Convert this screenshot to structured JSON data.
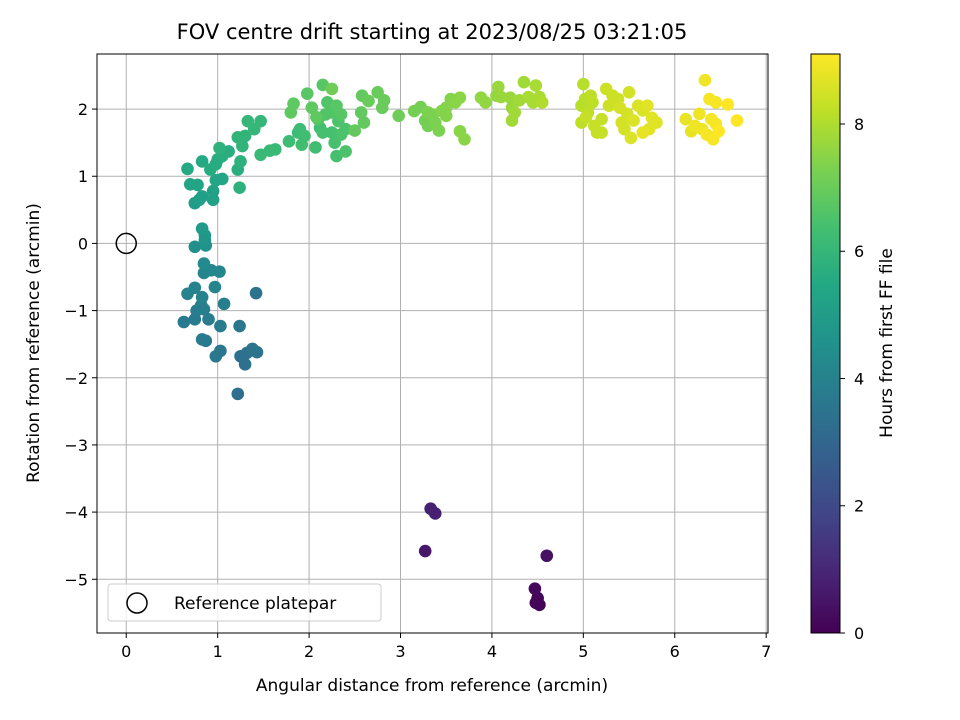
{
  "chart_data": {
    "type": "scatter",
    "title": "FOV centre drift starting at 2023/08/25 03:21:05",
    "xlabel": "Angular distance from reference (arcmin)",
    "ylabel": "Rotation from reference (arcmin)",
    "xlim": [
      -0.32,
      7.02
    ],
    "ylim": [
      -5.8,
      2.82
    ],
    "xticks": [
      0,
      1,
      2,
      3,
      4,
      5,
      6,
      7
    ],
    "yticks": [
      -5,
      -4,
      -3,
      -2,
      -1,
      0,
      1,
      2
    ],
    "xtick_labels": [
      "0",
      "1",
      "2",
      "3",
      "4",
      "5",
      "6",
      "7"
    ],
    "ytick_labels": [
      "−5",
      "−4",
      "−3",
      "−2",
      "−1",
      "0",
      "1",
      "2"
    ],
    "grid": true,
    "legend": {
      "position": "lower-left",
      "label": "Reference platepar"
    },
    "colorbar": {
      "label": "Hours from first FF file",
      "range": [
        0,
        9.1
      ],
      "ticks": [
        0,
        2,
        4,
        6,
        8
      ],
      "tick_labels": [
        "0",
        "2",
        "4",
        "6",
        "8"
      ],
      "colormap": "viridis"
    },
    "reference_point": {
      "x": 0,
      "y": 0
    },
    "series": [
      {
        "points": [
          [
            4.48,
            -5.35,
            0.1
          ],
          [
            4.52,
            -5.38,
            0.1
          ],
          [
            4.5,
            -5.28,
            0.1
          ],
          [
            4.47,
            -5.14,
            0.2
          ],
          [
            4.6,
            -4.65,
            0.4
          ],
          [
            3.33,
            -3.95,
            0.8
          ],
          [
            3.38,
            -4.02,
            0.8
          ],
          [
            3.27,
            -4.58,
            0.6
          ],
          [
            1.22,
            -2.24,
            3.3
          ],
          [
            1.25,
            -1.68,
            3.4
          ],
          [
            1.32,
            -1.63,
            3.4
          ],
          [
            1.3,
            -1.8,
            3.4
          ],
          [
            1.38,
            -1.57,
            3.5
          ],
          [
            1.43,
            -1.62,
            3.5
          ],
          [
            1.42,
            -0.74,
            3.5
          ],
          [
            1.24,
            -1.23,
            3.6
          ],
          [
            0.98,
            -1.68,
            3.6
          ],
          [
            1.03,
            -1.6,
            3.6
          ],
          [
            0.87,
            -1.45,
            3.7
          ],
          [
            0.83,
            -1.43,
            3.7
          ],
          [
            0.63,
            -1.17,
            3.7
          ],
          [
            0.75,
            -1.13,
            3.7
          ],
          [
            0.9,
            -1.13,
            3.8
          ],
          [
            1.03,
            -1.23,
            3.8
          ],
          [
            0.77,
            -1.0,
            3.8
          ],
          [
            0.85,
            -0.98,
            3.9
          ],
          [
            0.82,
            -0.92,
            3.9
          ],
          [
            1.07,
            -0.9,
            3.9
          ],
          [
            0.83,
            -0.8,
            4.0
          ],
          [
            0.67,
            -0.75,
            4.0
          ],
          [
            0.75,
            -0.66,
            4.0
          ],
          [
            0.97,
            -0.65,
            4.1
          ],
          [
            0.85,
            -0.44,
            4.1
          ],
          [
            0.93,
            -0.4,
            4.2
          ],
          [
            1.02,
            -0.42,
            4.2
          ],
          [
            0.85,
            -0.3,
            4.3
          ],
          [
            0.75,
            -0.05,
            4.5
          ],
          [
            0.87,
            -0.03,
            4.6
          ],
          [
            0.86,
            0.05,
            4.7
          ],
          [
            0.86,
            0.12,
            4.8
          ],
          [
            0.83,
            0.22,
            4.9
          ],
          [
            0.75,
            0.6,
            5.0
          ],
          [
            0.8,
            0.65,
            5.1
          ],
          [
            0.83,
            0.7,
            5.1
          ],
          [
            0.95,
            0.65,
            5.2
          ],
          [
            0.95,
            0.78,
            5.2
          ],
          [
            0.7,
            0.88,
            5.3
          ],
          [
            0.78,
            0.87,
            5.3
          ],
          [
            0.98,
            0.94,
            5.4
          ],
          [
            1.05,
            0.96,
            5.4
          ],
          [
            0.67,
            1.11,
            5.5
          ],
          [
            0.83,
            1.22,
            5.5
          ],
          [
            0.92,
            1.1,
            5.6
          ],
          [
            0.98,
            1.18,
            5.6
          ],
          [
            1.0,
            1.25,
            5.6
          ],
          [
            1.05,
            1.3,
            5.7
          ],
          [
            1.12,
            1.37,
            5.7
          ],
          [
            1.22,
            1.1,
            5.7
          ],
          [
            1.24,
            0.83,
            5.8
          ],
          [
            1.25,
            1.22,
            5.8
          ],
          [
            1.02,
            1.42,
            5.8
          ],
          [
            1.27,
            1.45,
            5.9
          ],
          [
            1.22,
            1.58,
            5.9
          ],
          [
            1.3,
            1.6,
            5.9
          ],
          [
            1.33,
            1.82,
            6.0
          ],
          [
            1.4,
            1.7,
            6.0
          ],
          [
            1.47,
            1.82,
            6.0
          ],
          [
            1.47,
            1.32,
            6.1
          ],
          [
            1.57,
            1.38,
            6.1
          ],
          [
            1.63,
            1.4,
            6.1
          ],
          [
            1.78,
            1.52,
            6.2
          ],
          [
            1.88,
            1.65,
            6.2
          ],
          [
            1.9,
            1.7,
            6.2
          ],
          [
            1.95,
            1.6,
            6.3
          ],
          [
            1.92,
            1.47,
            6.3
          ],
          [
            2.07,
            1.43,
            6.3
          ],
          [
            2.12,
            1.72,
            6.3
          ],
          [
            2.15,
            1.65,
            6.4
          ],
          [
            2.25,
            1.65,
            6.4
          ],
          [
            2.28,
            1.5,
            6.4
          ],
          [
            2.3,
            1.3,
            6.4
          ],
          [
            2.35,
            1.62,
            6.5
          ],
          [
            2.4,
            1.37,
            6.5
          ],
          [
            2.32,
            1.82,
            6.5
          ],
          [
            2.4,
            1.7,
            6.5
          ],
          [
            2.1,
            1.85,
            6.6
          ],
          [
            2.18,
            1.92,
            6.6
          ],
          [
            2.25,
            1.95,
            6.6
          ],
          [
            2.2,
            2.1,
            6.6
          ],
          [
            2.3,
            2.05,
            6.7
          ],
          [
            2.35,
            1.92,
            6.7
          ],
          [
            2.15,
            2.36,
            6.7
          ],
          [
            1.98,
            2.23,
            6.7
          ],
          [
            2.03,
            2.02,
            6.8
          ],
          [
            1.8,
            1.95,
            6.8
          ],
          [
            1.83,
            2.08,
            6.8
          ],
          [
            2.08,
            1.88,
            6.8
          ],
          [
            2.5,
            1.68,
            6.9
          ],
          [
            2.6,
            1.8,
            6.9
          ],
          [
            2.57,
            1.95,
            6.9
          ],
          [
            2.58,
            2.2,
            6.9
          ],
          [
            2.65,
            2.12,
            7.0
          ],
          [
            2.75,
            2.25,
            7.0
          ],
          [
            2.8,
            2.02,
            7.0
          ],
          [
            2.82,
            2.13,
            7.0
          ],
          [
            2.25,
            2.3,
            7.1
          ],
          [
            2.98,
            1.9,
            7.1
          ],
          [
            3.15,
            1.97,
            7.2
          ],
          [
            3.22,
            2.03,
            7.2
          ],
          [
            3.27,
            1.83,
            7.2
          ],
          [
            3.3,
            1.75,
            7.2
          ],
          [
            3.3,
            1.95,
            7.3
          ],
          [
            3.35,
            1.92,
            7.3
          ],
          [
            3.38,
            1.8,
            7.3
          ],
          [
            3.42,
            1.68,
            7.3
          ],
          [
            3.45,
            1.97,
            7.4
          ],
          [
            3.5,
            2.02,
            7.4
          ],
          [
            3.55,
            2.15,
            7.4
          ],
          [
            3.5,
            1.9,
            7.4
          ],
          [
            3.6,
            2.1,
            7.5
          ],
          [
            3.65,
            2.17,
            7.5
          ],
          [
            3.65,
            1.67,
            7.5
          ],
          [
            3.7,
            1.55,
            7.5
          ],
          [
            3.88,
            2.17,
            7.6
          ],
          [
            3.93,
            2.1,
            7.6
          ],
          [
            4.05,
            2.2,
            7.6
          ],
          [
            4.07,
            2.33,
            7.7
          ],
          [
            4.1,
            2.18,
            7.7
          ],
          [
            4.2,
            2.17,
            7.7
          ],
          [
            4.22,
            2.02,
            7.7
          ],
          [
            4.25,
            1.95,
            7.8
          ],
          [
            4.22,
            1.83,
            7.8
          ],
          [
            4.3,
            2.13,
            7.8
          ],
          [
            4.35,
            2.4,
            7.8
          ],
          [
            4.4,
            2.18,
            7.9
          ],
          [
            4.45,
            2.1,
            7.9
          ],
          [
            4.48,
            2.35,
            7.9
          ],
          [
            4.52,
            2.18,
            7.9
          ],
          [
            4.55,
            2.1,
            8.0
          ],
          [
            4.98,
            2.05,
            8.1
          ],
          [
            5.0,
            2.37,
            8.1
          ],
          [
            5.02,
            2.15,
            8.1
          ],
          [
            5.05,
            1.95,
            8.2
          ],
          [
            5.08,
            2.2,
            8.2
          ],
          [
            5.1,
            2.1,
            8.2
          ],
          [
            4.98,
            1.8,
            8.2
          ],
          [
            5.03,
            1.88,
            8.3
          ],
          [
            5.12,
            1.75,
            8.3
          ],
          [
            5.15,
            1.65,
            8.3
          ],
          [
            5.2,
            1.65,
            8.3
          ],
          [
            5.2,
            1.85,
            8.3
          ],
          [
            5.25,
            2.3,
            8.4
          ],
          [
            5.28,
            2.05,
            8.4
          ],
          [
            5.32,
            2.2,
            8.4
          ],
          [
            5.38,
            2.15,
            8.4
          ],
          [
            5.4,
            2.02,
            8.5
          ],
          [
            5.42,
            1.8,
            8.5
          ],
          [
            5.45,
            1.7,
            8.5
          ],
          [
            5.48,
            1.93,
            8.5
          ],
          [
            5.5,
            2.25,
            8.5
          ],
          [
            5.52,
            1.57,
            8.6
          ],
          [
            5.55,
            1.83,
            8.6
          ],
          [
            5.6,
            2.05,
            8.6
          ],
          [
            5.65,
            1.98,
            8.6
          ],
          [
            5.7,
            2.05,
            8.7
          ],
          [
            5.72,
            1.7,
            8.7
          ],
          [
            5.75,
            1.87,
            8.7
          ],
          [
            5.8,
            1.8,
            8.7
          ],
          [
            5.65,
            1.65,
            8.8
          ],
          [
            6.12,
            1.85,
            8.8
          ],
          [
            6.18,
            1.67,
            8.8
          ],
          [
            6.22,
            1.75,
            8.9
          ],
          [
            6.27,
            1.93,
            8.9
          ],
          [
            6.3,
            1.7,
            8.9
          ],
          [
            6.33,
            2.43,
            8.9
          ],
          [
            6.35,
            1.62,
            9.0
          ],
          [
            6.38,
            2.15,
            9.0
          ],
          [
            6.4,
            1.85,
            9.0
          ],
          [
            6.42,
            1.55,
            9.0
          ],
          [
            6.45,
            1.78,
            9.0
          ],
          [
            6.45,
            2.1,
            9.0
          ],
          [
            6.48,
            1.67,
            9.1
          ],
          [
            6.58,
            2.07,
            9.1
          ],
          [
            6.68,
            1.83,
            9.1
          ]
        ]
      }
    ]
  }
}
